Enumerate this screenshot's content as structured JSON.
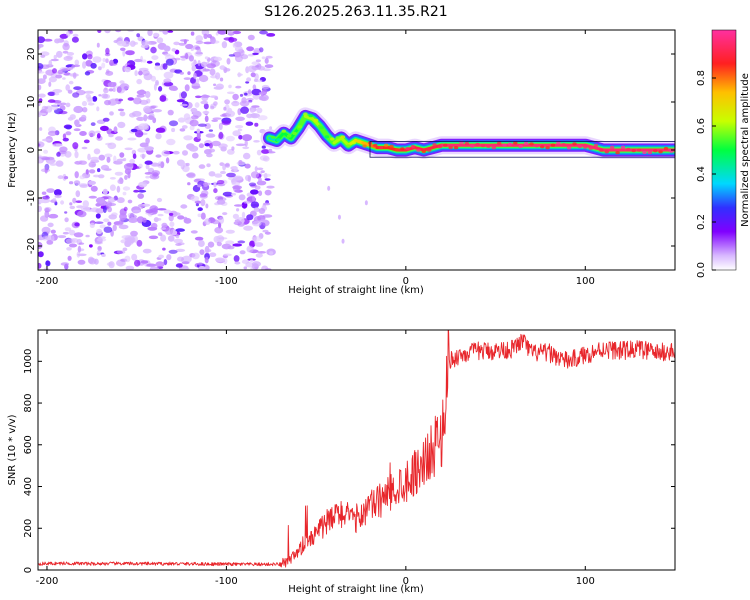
{
  "title": "S126.2025.263.11.35.R21",
  "chart_data": [
    {
      "type": "heatmap",
      "xlabel": "Height of straight line (km)",
      "ylabel": "Frequency (Hz)",
      "xlim": [
        -205,
        150
      ],
      "ylim": [
        -25,
        25
      ],
      "xticks": [
        -200,
        -100,
        0,
        100
      ],
      "yticks": [
        -20,
        -10,
        0,
        10,
        20
      ],
      "noise_region": {
        "x_range": [
          -205,
          -75
        ],
        "y_range": [
          -25,
          25
        ],
        "amplitude_range": [
          0.0,
          0.25
        ]
      },
      "ridge": {
        "x": [
          -76,
          -72,
          -68,
          -64,
          -60,
          -56,
          -52,
          -48,
          -44,
          -40,
          -36,
          -32,
          -28,
          -24,
          -20,
          -16,
          -10,
          -5,
          0,
          5,
          10,
          15,
          20,
          30,
          40,
          50,
          60,
          70,
          80,
          90,
          100,
          110,
          120,
          130,
          140,
          150
        ],
        "y": [
          2.5,
          2.0,
          3.5,
          2.5,
          4.5,
          7.0,
          6.5,
          5.0,
          3.0,
          1.5,
          2.5,
          1.0,
          2.0,
          1.5,
          1.0,
          0.5,
          0.5,
          0.0,
          0.0,
          0.5,
          0.0,
          0.5,
          1.0,
          1.0,
          1.0,
          1.0,
          1.0,
          1.0,
          1.0,
          1.0,
          1.0,
          0.0,
          0.0,
          0.0,
          0.0,
          0.0
        ],
        "amplitude": [
          0.4,
          0.5,
          0.5,
          0.5,
          0.55,
          0.6,
          0.6,
          0.55,
          0.55,
          0.6,
          0.6,
          0.65,
          0.7,
          0.75,
          0.8,
          0.85,
          0.85,
          0.9,
          0.9,
          0.9,
          0.9,
          0.9,
          0.95,
          0.95,
          0.95,
          0.95,
          0.95,
          0.95,
          0.95,
          0.95,
          0.95,
          0.95,
          0.95,
          0.95,
          0.95,
          0.95
        ]
      },
      "colorbar": {
        "label": "Normalized spectral amplitude",
        "range": [
          0.0,
          1.0
        ],
        "ticks": [
          "0.0",
          "0.2",
          "0.4",
          "0.6",
          "0.8"
        ],
        "colormap": [
          "#ffffff",
          "#d8b8ff",
          "#8000ff",
          "#3030ff",
          "#00d8ff",
          "#00ff40",
          "#c8ff00",
          "#ffc000",
          "#ff2020",
          "#ff30a0"
        ]
      }
    },
    {
      "type": "line",
      "xlabel": "Height of straight line (km)",
      "ylabel": "SNR (10 * v/v)",
      "xlim": [
        -205,
        150
      ],
      "ylim": [
        0,
        1150
      ],
      "xticks": [
        -200,
        -100,
        0,
        100
      ],
      "yticks": [
        0,
        200,
        400,
        600,
        800,
        1000
      ],
      "series": [
        {
          "name": "SNR",
          "color": "#e8262b",
          "x": [
            -205,
            -190,
            -175,
            -160,
            -145,
            -130,
            -115,
            -100,
            -85,
            -70,
            -65,
            -60,
            -55,
            -50,
            -45,
            -40,
            -35,
            -30,
            -25,
            -20,
            -15,
            -10,
            -5,
            0,
            5,
            10,
            15,
            20,
            22,
            24,
            26,
            30,
            40,
            50,
            60,
            65,
            70,
            80,
            90,
            100,
            110,
            120,
            130,
            140,
            150
          ],
          "y": [
            30,
            32,
            30,
            31,
            30,
            30,
            29,
            28,
            27,
            28,
            40,
            80,
            150,
            180,
            220,
            250,
            280,
            230,
            270,
            300,
            330,
            360,
            400,
            430,
            470,
            520,
            570,
            640,
            820,
            1000,
            1010,
            1030,
            1050,
            1050,
            1060,
            1100,
            1040,
            1040,
            1000,
            1030,
            1060,
            1050,
            1060,
            1040,
            1050
          ]
        }
      ]
    }
  ]
}
